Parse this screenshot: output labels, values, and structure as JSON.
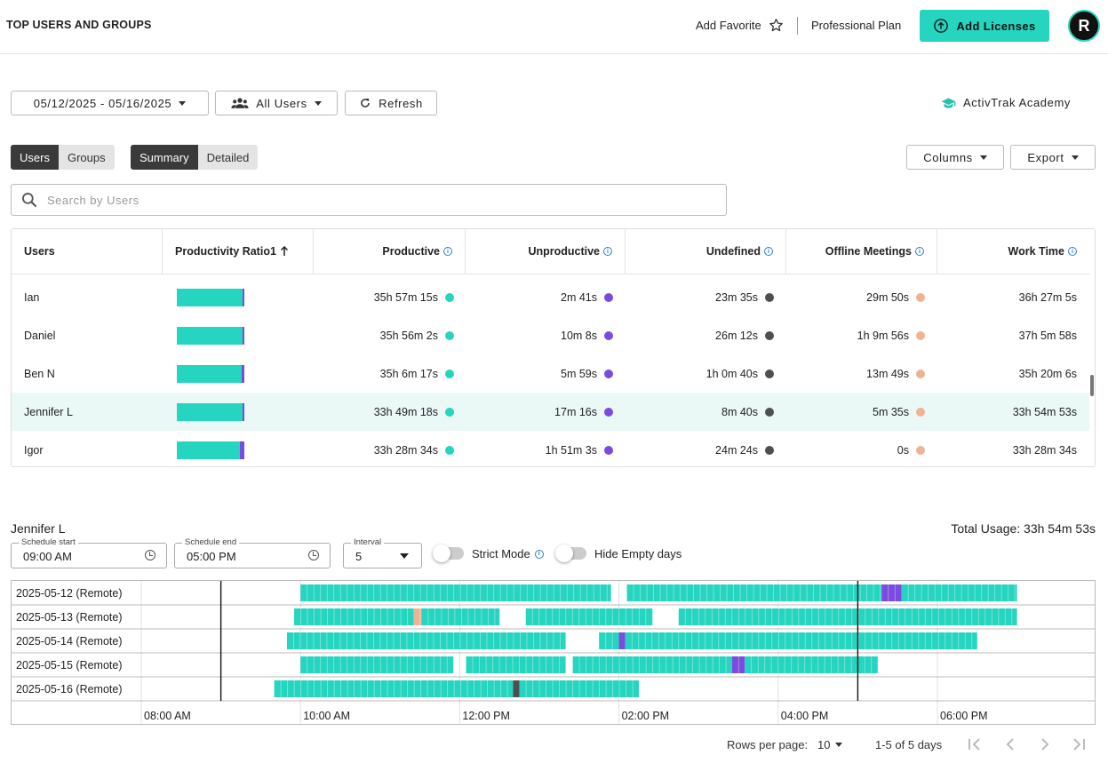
{
  "header": {
    "title": "TOP USERS AND GROUPS",
    "add_favorite": "Add Favorite",
    "plan": "Professional Plan",
    "add_licenses": "Add Licenses",
    "avatar_initial": "R"
  },
  "filters": {
    "date_range": "05/12/2025 - 05/16/2025",
    "users": "All Users",
    "refresh": "Refresh",
    "academy": "ActivTrak Academy"
  },
  "view": {
    "users": "Users",
    "groups": "Groups",
    "summary": "Summary",
    "detailed": "Detailed",
    "columns": "Columns",
    "export": "Export"
  },
  "search": {
    "placeholder": "Search by Users"
  },
  "colors": {
    "productive": "#26d5bf",
    "unproductive": "#7b4be0",
    "undefined": "#4f4f4f",
    "offline": "#eeb394"
  },
  "table": {
    "headers": [
      "Users",
      "Productivity Ratio1",
      "Productive",
      "Unproductive",
      "Undefined",
      "Offline Meetings",
      "Work Time"
    ],
    "rows": [
      {
        "name": "Ian",
        "productive": "35h 57m 15s",
        "unproductive": "2m 41s",
        "undefined": "23m 35s",
        "offline": "29m 50s",
        "work": "36h 27m 5s",
        "ratio": [
          0.972,
          0.028
        ]
      },
      {
        "name": "Daniel",
        "productive": "35h 56m 2s",
        "unproductive": "10m 8s",
        "undefined": "26m 12s",
        "offline": "1h 9m 56s",
        "work": "37h 5m 58s",
        "ratio": [
          0.97,
          0.03
        ]
      },
      {
        "name": "Ben N",
        "productive": "35h 6m 17s",
        "unproductive": "5m 59s",
        "undefined": "1h 0m 40s",
        "offline": "13m 49s",
        "work": "35h 20m 6s",
        "ratio": [
          0.96,
          0.04
        ]
      },
      {
        "name": "Jennifer L",
        "productive": "33h 49m 18s",
        "unproductive": "17m 16s",
        "undefined": "8m 40s",
        "offline": "5m 35s",
        "work": "33h 54m 53s",
        "ratio": [
          0.97,
          0.03
        ]
      },
      {
        "name": "Igor",
        "productive": "33h 28m 34s",
        "unproductive": "1h 51m 3s",
        "undefined": "24m 24s",
        "offline": "0s",
        "work": "33h 28m 34s",
        "ratio": [
          0.93,
          0.07
        ]
      }
    ]
  },
  "timeline": {
    "user": "Jennifer L",
    "total_usage": "Total Usage: 33h 54m 53s",
    "schedule_start_label": "Schedule start",
    "schedule_start": "09:00 AM",
    "schedule_end_label": "Schedule end",
    "schedule_end": "05:00 PM",
    "interval_label": "Interval",
    "interval": "5",
    "strict_mode": "Strict Mode",
    "hide_empty": "Hide Empty days",
    "hours": [
      "08:00 AM",
      "10:00 AM",
      "12:00 PM",
      "02:00 PM",
      "04:00 PM",
      "06:00 PM"
    ],
    "axis_start_hour": 8,
    "axis_end_hour": 19,
    "schedule_start_hour": 9,
    "schedule_end_hour": 17,
    "days": [
      {
        "label": "2025-05-12 (Remote)",
        "segments": [
          [
            10.0,
            13.9,
            "p"
          ],
          [
            14.1,
            17.3,
            "p"
          ],
          [
            17.3,
            17.55,
            "u"
          ],
          [
            17.55,
            19.0,
            "p"
          ]
        ]
      },
      {
        "label": "2025-05-13 (Remote)",
        "segments": [
          [
            9.92,
            11.42,
            "p"
          ],
          [
            11.42,
            11.52,
            "o"
          ],
          [
            11.52,
            12.5,
            "p"
          ],
          [
            12.83,
            14.42,
            "p"
          ],
          [
            14.75,
            19.0,
            "p"
          ]
        ]
      },
      {
        "label": "2025-05-14 (Remote)",
        "segments": [
          [
            9.83,
            13.33,
            "p"
          ],
          [
            13.75,
            14.0,
            "p"
          ],
          [
            14.0,
            14.08,
            "u"
          ],
          [
            14.08,
            18.5,
            "p"
          ]
        ]
      },
      {
        "label": "2025-05-15 (Remote)",
        "segments": [
          [
            10.0,
            11.92,
            "p"
          ],
          [
            12.08,
            13.33,
            "p"
          ],
          [
            13.42,
            15.42,
            "p"
          ],
          [
            15.42,
            15.58,
            "u"
          ],
          [
            15.58,
            17.25,
            "p"
          ]
        ]
      },
      {
        "label": "2025-05-16 (Remote)",
        "segments": [
          [
            9.67,
            12.67,
            "p"
          ],
          [
            12.67,
            12.75,
            "d"
          ],
          [
            12.75,
            14.25,
            "p"
          ]
        ]
      }
    ]
  },
  "footer": {
    "rows_per_page_label": "Rows per page:",
    "rows_per_page": "10",
    "range": "1-5 of 5 days"
  }
}
